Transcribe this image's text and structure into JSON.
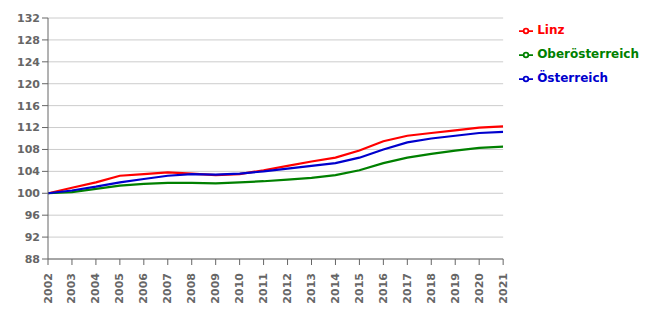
{
  "chart_data": {
    "type": "line",
    "x": [
      2002,
      2003,
      2004,
      2005,
      2006,
      2007,
      2008,
      2009,
      2010,
      2011,
      2012,
      2013,
      2014,
      2015,
      2016,
      2017,
      2018,
      2019,
      2020,
      2021
    ],
    "series": [
      {
        "name": "Linz",
        "color": "#ff0000",
        "values": [
          100.0,
          101.0,
          102.0,
          103.2,
          103.5,
          103.8,
          103.6,
          103.3,
          103.5,
          104.2,
          105.0,
          105.8,
          106.5,
          107.8,
          109.5,
          110.5,
          111.0,
          111.5,
          112.0,
          112.2
        ]
      },
      {
        "name": "Oberösterreich",
        "color": "#008000",
        "values": [
          100.0,
          100.2,
          100.8,
          101.4,
          101.7,
          101.9,
          101.9,
          101.8,
          102.0,
          102.2,
          102.5,
          102.8,
          103.3,
          104.2,
          105.5,
          106.5,
          107.2,
          107.8,
          108.3,
          108.5
        ]
      },
      {
        "name": "Österreich",
        "color": "#0000cd",
        "values": [
          100.0,
          100.5,
          101.2,
          102.0,
          102.6,
          103.2,
          103.5,
          103.4,
          103.6,
          104.0,
          104.5,
          105.0,
          105.5,
          106.5,
          108.0,
          109.3,
          110.0,
          110.5,
          111.0,
          111.2
        ]
      }
    ],
    "xlim": [
      2002,
      2021
    ],
    "xticks": [
      2002,
      2003,
      2004,
      2005,
      2006,
      2007,
      2008,
      2009,
      2010,
      2011,
      2012,
      2013,
      2014,
      2015,
      2016,
      2017,
      2018,
      2019,
      2020,
      2021
    ],
    "ylim": [
      88,
      132
    ],
    "yticks": [
      88,
      92,
      96,
      100,
      104,
      108,
      112,
      116,
      120,
      124,
      128,
      132
    ],
    "grid": true,
    "legend": "right"
  }
}
